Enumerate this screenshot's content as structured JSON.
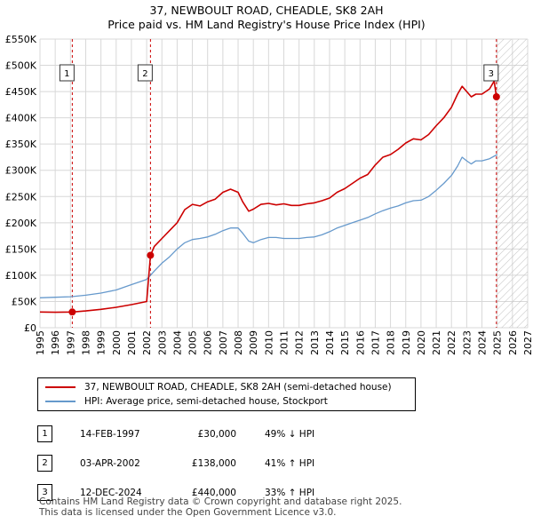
{
  "title": {
    "line1": "37, NEWBOULT ROAD, CHEADLE, SK8 2AH",
    "line2": "Price paid vs. HM Land Registry's House Price Index (HPI)"
  },
  "colors": {
    "property": "#cc0000",
    "hpi": "#6699cc",
    "grid": "#d8d8d8",
    "shade": "#eaeaf2",
    "hatch": "#bdbdbd"
  },
  "chart_data": {
    "type": "line",
    "title": "37, NEWBOULT ROAD, CHEADLE, SK8 2AH",
    "subtitle": "Price paid vs. HM Land Registry's House Price Index (HPI)",
    "xlabel": "",
    "ylabel": "",
    "xlim": [
      1995,
      2027
    ],
    "ylim": [
      0,
      550000
    ],
    "x_ticks": [
      1995,
      1996,
      1997,
      1998,
      1999,
      2000,
      2001,
      2002,
      2003,
      2004,
      2005,
      2006,
      2007,
      2008,
      2009,
      2010,
      2011,
      2012,
      2013,
      2014,
      2015,
      2016,
      2017,
      2018,
      2019,
      2020,
      2021,
      2022,
      2023,
      2024,
      2025,
      2026,
      2027
    ],
    "y_ticks": [
      {
        "value": 0,
        "label": "£0"
      },
      {
        "value": 50000,
        "label": "£50K"
      },
      {
        "value": 100000,
        "label": "£100K"
      },
      {
        "value": 150000,
        "label": "£150K"
      },
      {
        "value": 200000,
        "label": "£200K"
      },
      {
        "value": 250000,
        "label": "£250K"
      },
      {
        "value": 300000,
        "label": "£300K"
      },
      {
        "value": 350000,
        "label": "£350K"
      },
      {
        "value": 400000,
        "label": "£400K"
      },
      {
        "value": 450000,
        "label": "£450K"
      },
      {
        "value": 500000,
        "label": "£500K"
      },
      {
        "value": 550000,
        "label": "£550K"
      }
    ],
    "grid": true,
    "future_region_start": 2025.0,
    "series": [
      {
        "name": "37, NEWBOULT ROAD, CHEADLE, SK8 2AH (semi-detached house)",
        "x": [
          1995.0,
          1996.0,
          1997.12,
          1998.0,
          1999.0,
          2000.0,
          2001.0,
          2002.0,
          2002.25,
          2002.5,
          2003.0,
          2003.5,
          2004.0,
          2004.5,
          2005.0,
          2005.5,
          2006.0,
          2006.5,
          2007.0,
          2007.5,
          2008.0,
          2008.3,
          2008.7,
          2009.0,
          2009.5,
          2010.0,
          2010.5,
          2011.0,
          2011.5,
          2012.0,
          2012.5,
          2013.0,
          2013.5,
          2014.0,
          2014.5,
          2015.0,
          2015.5,
          2016.0,
          2016.5,
          2017.0,
          2017.5,
          2018.0,
          2018.5,
          2019.0,
          2019.5,
          2020.0,
          2020.5,
          2021.0,
          2021.5,
          2022.0,
          2022.4,
          2022.7,
          2023.0,
          2023.3,
          2023.6,
          2024.0,
          2024.5,
          2024.8,
          2024.95
        ],
        "values": [
          30000,
          29500,
          30000,
          32000,
          35000,
          39000,
          44000,
          50000,
          138000,
          155000,
          170000,
          185000,
          200000,
          225000,
          235000,
          232000,
          240000,
          245000,
          258000,
          264000,
          258000,
          240000,
          222000,
          226000,
          235000,
          237000,
          234000,
          236000,
          233000,
          233000,
          236000,
          238000,
          242000,
          247000,
          258000,
          265000,
          275000,
          285000,
          292000,
          310000,
          325000,
          330000,
          340000,
          352000,
          360000,
          358000,
          368000,
          385000,
          400000,
          420000,
          445000,
          460000,
          450000,
          440000,
          445000,
          445000,
          455000,
          470000,
          440000
        ]
      },
      {
        "name": "HPI: Average price, semi-detached house, Stockport",
        "x": [
          1995.0,
          1996.0,
          1997.0,
          1998.0,
          1999.0,
          2000.0,
          2001.0,
          2002.0,
          2002.5,
          2003.0,
          2003.5,
          2004.0,
          2004.5,
          2005.0,
          2005.5,
          2006.0,
          2006.5,
          2007.0,
          2007.5,
          2008.0,
          2008.3,
          2008.7,
          2009.0,
          2009.5,
          2010.0,
          2010.5,
          2011.0,
          2011.5,
          2012.0,
          2012.5,
          2013.0,
          2013.5,
          2014.0,
          2014.5,
          2015.0,
          2015.5,
          2016.0,
          2016.5,
          2017.0,
          2017.5,
          2018.0,
          2018.5,
          2019.0,
          2019.5,
          2020.0,
          2020.5,
          2021.0,
          2021.5,
          2022.0,
          2022.4,
          2022.7,
          2023.0,
          2023.3,
          2023.6,
          2024.0,
          2024.5,
          2025.0
        ],
        "values": [
          57000,
          58000,
          59000,
          62000,
          66000,
          72000,
          82000,
          92000,
          108000,
          123000,
          135000,
          150000,
          162000,
          168000,
          170000,
          173000,
          178000,
          185000,
          190000,
          190000,
          180000,
          165000,
          162000,
          168000,
          172000,
          172000,
          170000,
          170000,
          170000,
          172000,
          173000,
          177000,
          183000,
          190000,
          195000,
          200000,
          205000,
          210000,
          217000,
          223000,
          228000,
          232000,
          238000,
          242000,
          243000,
          250000,
          262000,
          275000,
          290000,
          308000,
          325000,
          318000,
          312000,
          318000,
          318000,
          322000,
          330000
        ]
      }
    ],
    "markers": [
      {
        "label": "1",
        "x": 1997.12,
        "y": 30000
      },
      {
        "label": "2",
        "x": 2002.25,
        "y": 138000
      },
      {
        "label": "3",
        "x": 2024.95,
        "y": 440000
      }
    ]
  },
  "legend": [
    {
      "label": "37, NEWBOULT ROAD, CHEADLE, SK8 2AH (semi-detached house)"
    },
    {
      "label": "HPI: Average price, semi-detached house, Stockport"
    }
  ],
  "transactions": [
    {
      "num": "1",
      "date": "14-FEB-1997",
      "price": "£30,000",
      "hpi": "49% ↓ HPI"
    },
    {
      "num": "2",
      "date": "03-APR-2002",
      "price": "£138,000",
      "hpi": "41% ↑ HPI"
    },
    {
      "num": "3",
      "date": "12-DEC-2024",
      "price": "£440,000",
      "hpi": "33% ↑ HPI"
    }
  ],
  "footer": {
    "line1": "Contains HM Land Registry data © Crown copyright and database right 2025.",
    "line2": "This data is licensed under the Open Government Licence v3.0."
  }
}
